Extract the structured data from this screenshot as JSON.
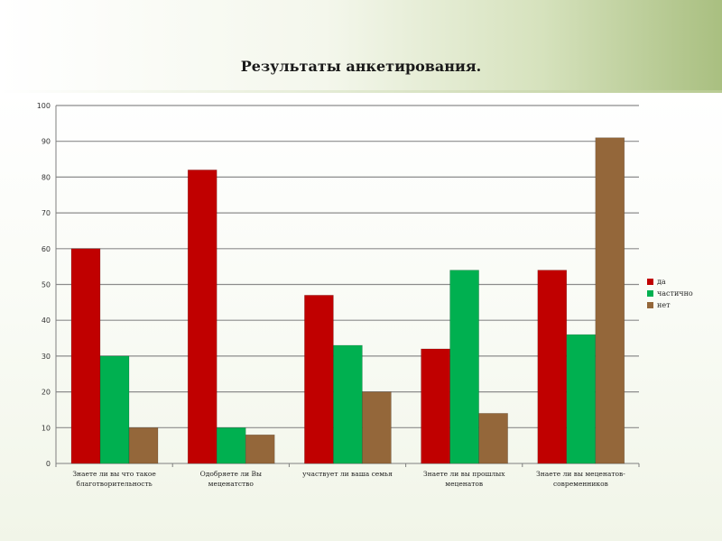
{
  "page": {
    "title": "Результаты анкетирования."
  },
  "colors": {
    "series": [
      "#c00000",
      "#00b050",
      "#94673a"
    ],
    "grid": "#8c8c8c",
    "axis": "#7f7f7f",
    "text": "#1a1a1a"
  },
  "chart_data": {
    "type": "bar",
    "title": "",
    "xlabel": "",
    "ylabel": "",
    "ylim": [
      0,
      100
    ],
    "yticks": [
      "0",
      "10",
      "20",
      "30",
      "40",
      "50",
      "60",
      "70",
      "80",
      "90",
      "100"
    ],
    "grid": true,
    "legend_position": "right",
    "categories": [
      [
        "Знаете ли вы что такое",
        "благотворительность"
      ],
      [
        "Одобряете ли Вы",
        "меценатство"
      ],
      [
        "участвует ли ваша семья"
      ],
      [
        "Знаете ли вы прошлых",
        "меценатов"
      ],
      [
        "Знаете ли вы меценатов-",
        "современников"
      ]
    ],
    "series": [
      {
        "name": "да",
        "values": [
          60,
          82,
          47,
          32,
          54
        ]
      },
      {
        "name": "частично",
        "values": [
          30,
          10,
          33,
          54,
          36
        ]
      },
      {
        "name": "нет",
        "values": [
          10,
          8,
          20,
          14,
          91
        ]
      }
    ]
  }
}
